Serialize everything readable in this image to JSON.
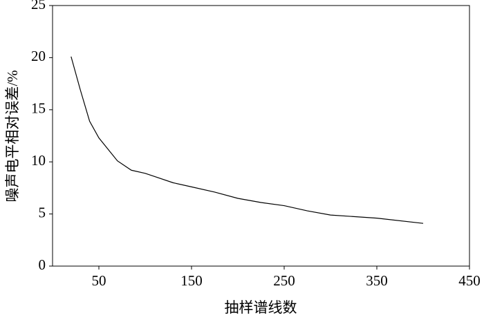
{
  "chart_data": {
    "type": "line",
    "x_label": "抽样谱线数",
    "y_label": "噪声电平相对误差/%",
    "x": [
      20,
      30,
      40,
      50,
      60,
      70,
      85,
      100,
      110,
      130,
      150,
      175,
      200,
      225,
      250,
      275,
      300,
      350,
      400
    ],
    "values": [
      20.1,
      16.9,
      13.9,
      12.3,
      11.2,
      10.1,
      9.2,
      8.9,
      8.6,
      8.0,
      7.6,
      7.1,
      6.5,
      6.1,
      5.8,
      5.3,
      4.9,
      4.6,
      4.1
    ],
    "color": "#000000",
    "xlim": [
      0,
      450
    ],
    "xticks": [
      50,
      150,
      250,
      350,
      450
    ],
    "ylim": [
      0,
      25
    ],
    "yticks": [
      0,
      5,
      10,
      15,
      20,
      25
    ],
    "grid": false
  }
}
